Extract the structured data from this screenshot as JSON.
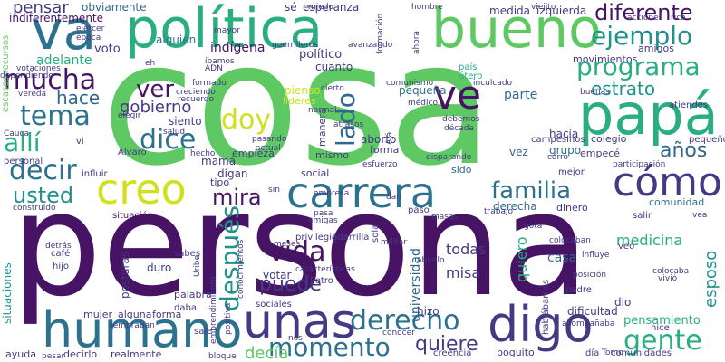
{
  "colors": {
    "background": "#ffffff",
    "dark_purple": "#471365",
    "purple": "#443983",
    "indigo": "#31688e",
    "blue": "#2c728e",
    "teal": "#21918c",
    "teal_green": "#28ae80",
    "green": "#5ec962",
    "yellow_green": "#addc30",
    "yellow": "#d0e11c"
  },
  "words": {
    "persona": "persona",
    "cosa": "cosa",
    "papa": "papá",
    "politica": "política",
    "bueno": "bueno",
    "va": "va",
    "humano": "humano",
    "digo": "digo",
    "unas": "unas",
    "carrera": "carrera",
    "creo": "creo",
    "como": "cómo",
    "ve": "ve",
    "ejemplo": "ejemplo",
    "programa": "programa",
    "diferente": "diferente",
    "estrato": "estrato",
    "anos": "años",
    "mucha": "mucha",
    "tema": "tema",
    "alli": "allí",
    "decir": "decir",
    "usted": "usted",
    "dice": "dice",
    "doy": "doy",
    "ver": "ver",
    "gobierno": "gobierno",
    "hace": "hace",
    "lado": "lado",
    "familia": "familia",
    "mira": "mira",
    "vida": "vida",
    "despues": "después",
    "puede": "puede",
    "momento": "momento",
    "derecho": "derecho",
    "gente": "gente",
    "quiere": "quiere",
    "decia": "decía",
    "esposo": "esposo",
    "pensamiento": "pensamiento",
    "medicina": "medicina",
    "quiero": "quiero",
    "universidad": "universidad",
    "todas": "todas",
    "misa": "misa",
    "casa": "casa",
    "pensar": "pensar",
    "obviamente": "obviamente",
    "indiferentemente": "indiferentemente",
    "voto": "voto",
    "adelante": "adelante",
    "indigena": "indígena",
    "alguien": "alguien",
    "politico": "político",
    "cuanto": "cuanto",
    "pienso": "pienso",
    "lideres": "líderes",
    "esperanza": "esperanza",
    "medida": "medida",
    "izquierda": "izquierda",
    "movimientos": "movimientos",
    "amigos": "amigos",
    "pais": "país",
    "utero": "útero",
    "pequena": "pequeña",
    "parte": "parte",
    "hacia": "hacía",
    "colegio": "colegio",
    "aborto": "aborto",
    "forma": "forma",
    "vez": "vez",
    "grupo": "grupo",
    "empece": "empecé",
    "mejor": "mejor",
    "siento": "siento",
    "digan": "digan",
    "mama": "mamá",
    "tipo": "tipo",
    "empieza": "empieza",
    "social": "social",
    "mismo": "mismo",
    "manera": "manera",
    "sido": "sido",
    "derecha": "derecha",
    "dinero": "dinero",
    "comunidad": "comunidad",
    "situaciones": "situaciones",
    "personal": "personal",
    "influir": "influir",
    "situacion": "situación",
    "duro": "duro",
    "posturas": "posturas",
    "palabra": "palabra",
    "cafe": "café",
    "hijo": "hijo",
    "votar": "votar",
    "privilegiada": "privilegiada",
    "guerrilla": "guerrilla",
    "sola": "sola",
    "mujer": "mujer",
    "alguna": "alguna",
    "forma2": "forma",
    "sociales": "sociales",
    "petro": "Petro",
    "hizo": "hizo",
    "dio": "dio",
    "dificultad": "dificultad",
    "hablabamos": "hablábamos",
    "hice": "hice",
    "poquito": "poquito",
    "creencia": "creencia",
    "comunidades": "comunidades",
    "ayuda": "ayuda",
    "decirlo": "decirlo",
    "realmente": "realmente",
    "dia": "día",
    "pequeno": "pequeño",
    "atiendes": "atiendes",
    "campesinos": "campesinos",
    "alvaro": "Álvaro",
    "vi": "vi",
    "sale": "sale",
    "sabes": "sabes",
    "veo": "veo",
    "salir": "salir",
    "paso": "paso",
    "colocaban": "colocaban",
    "padre": "padre",
    "colocaba": "colocaba",
    "vivio": "vivió",
    "sembraban": "sembraban",
    "daba": "daba",
    "uribe": "Uribe",
    "conocer": "conocer",
    "empresa": "empresa",
    "escasos_recursos": "escasos recursos",
    "ejercer": "ejercer",
    "epoca": "época",
    "votaciones": "votaciones",
    "dependiendo": "dependiendo",
    "vereda": "vereda",
    "cauca": "Cauca",
    "salud": "salud",
    "mayor": "mayor",
    "guerrilleros": "guerrilleros",
    "avanzando": "avanzando",
    "formacion": "formación",
    "hombre": "hombre",
    "viejito": "viejito",
    "acciones": "acciones",
    "rica": "rica",
    "ahora": "ahora",
    "ibamos": "íbamos",
    "adn": "ADN",
    "formado": "formado",
    "creciendo": "creciendo",
    "recuerdo": "recuerdo",
    "elegir": "elegir",
    "normal": "normal",
    "comunismo": "comunismo",
    "inculcado": "inculcado",
    "medico": "médico",
    "buenas": "buenas",
    "debemos": "debemos",
    "decada": "década",
    "aja": "Ajá",
    "disparando": "disparando",
    "esfuerzo": "esfuerzo",
    "pasando": "pasando",
    "actual": "actual",
    "hecho": "hecho",
    "carro": "carro",
    "participacion": "participación",
    "dan": "dan",
    "construido": "construido",
    "amigas": "amigas",
    "trabajo": "trabajo",
    "detras": "detrás",
    "meses": "meses",
    "conocimientos": "conocimientos",
    "militar": "militar",
    "abuelo": "abuelo",
    "influye": "influye",
    "posicion": "posición",
    "caracteristicas": "características",
    "positiva": "positiva",
    "acompanaba": "acompañaba",
    "pesar": "pesar",
    "bloque": "bloque",
    "nos": "nos",
    "tomo": "Tomo",
    "miedo": "miedo",
    "se": "sé",
    "vea": "vea",
    "cierto": "cierto",
    "pasa": "pasa",
    "masas": "masas",
    "gota": "gota",
    "emprendimiento": "emprendimiento",
    "sin": "sin",
    "atrasos": "atrasos",
    "eh": "eh"
  }
}
